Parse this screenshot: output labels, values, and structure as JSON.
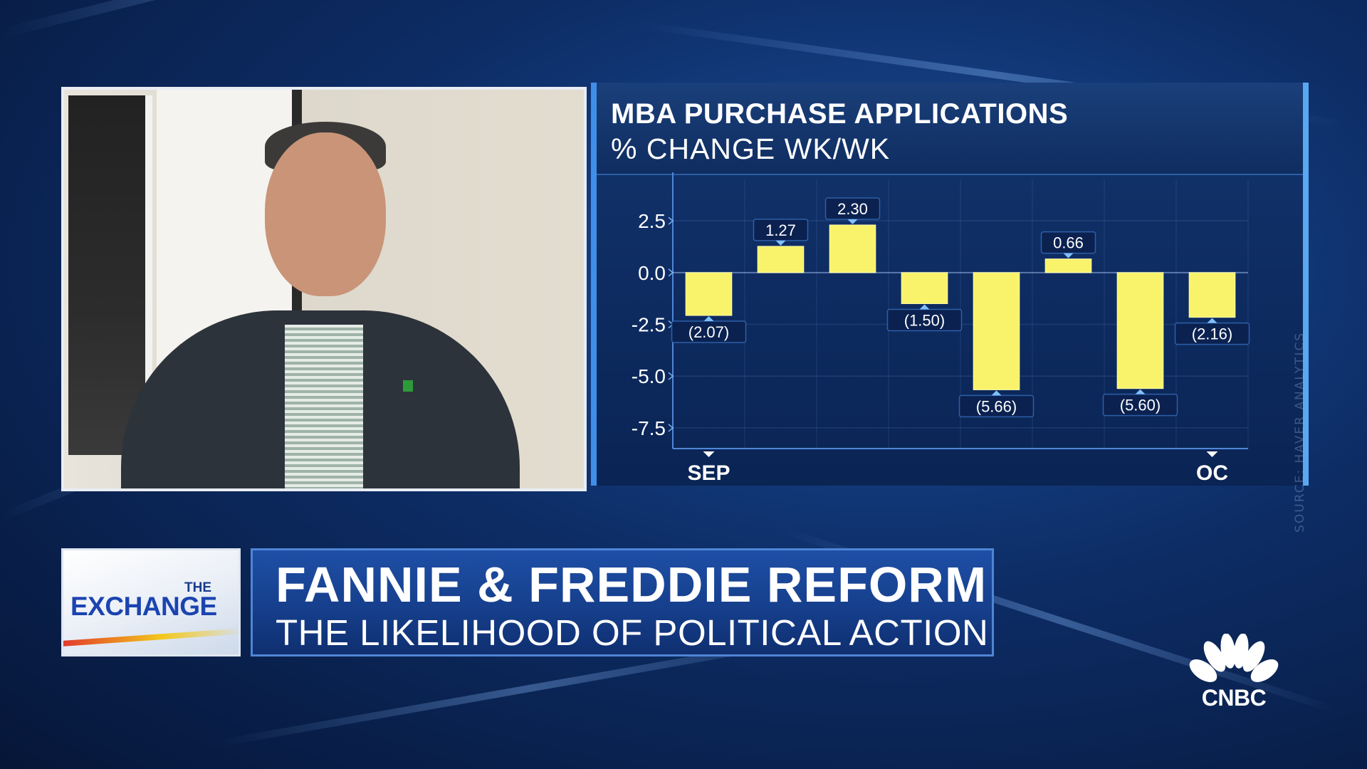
{
  "chart_data": {
    "type": "bar",
    "title": "MBA PURCHASE APPLICATIONS",
    "subtitle": "% CHANGE WK/WK",
    "source": "SOURCE: HAVER ANALYTICS",
    "values": [
      -2.07,
      1.27,
      2.3,
      -1.5,
      -5.66,
      0.66,
      -5.6,
      -2.16
    ],
    "value_labels": [
      "(2.07)",
      "1.27",
      "2.30",
      "(1.50)",
      "(5.66)",
      "0.66",
      "(5.60)",
      "(2.16)"
    ],
    "yticks": [
      2.5,
      0.0,
      -2.5,
      -5.0,
      -7.5
    ],
    "ytick_labels": [
      "2.5",
      "0.0",
      "-2.5",
      "-5.0",
      "-7.5"
    ],
    "x_labels": [
      {
        "label": "SEP",
        "bar_index": 0
      },
      {
        "label": "OC",
        "bar_index": 7
      }
    ],
    "ylim": [
      -8.5,
      4.5
    ],
    "grid": true,
    "bar_color": "#f8f36a"
  },
  "lower_third": {
    "show_the": "THE",
    "show_name": "EXCHANGE",
    "headline": "FANNIE & FREDDIE REFORM",
    "subhead": "THE LIKELIHOOD OF POLITICAL ACTION"
  },
  "network": {
    "name": "CNBC"
  }
}
